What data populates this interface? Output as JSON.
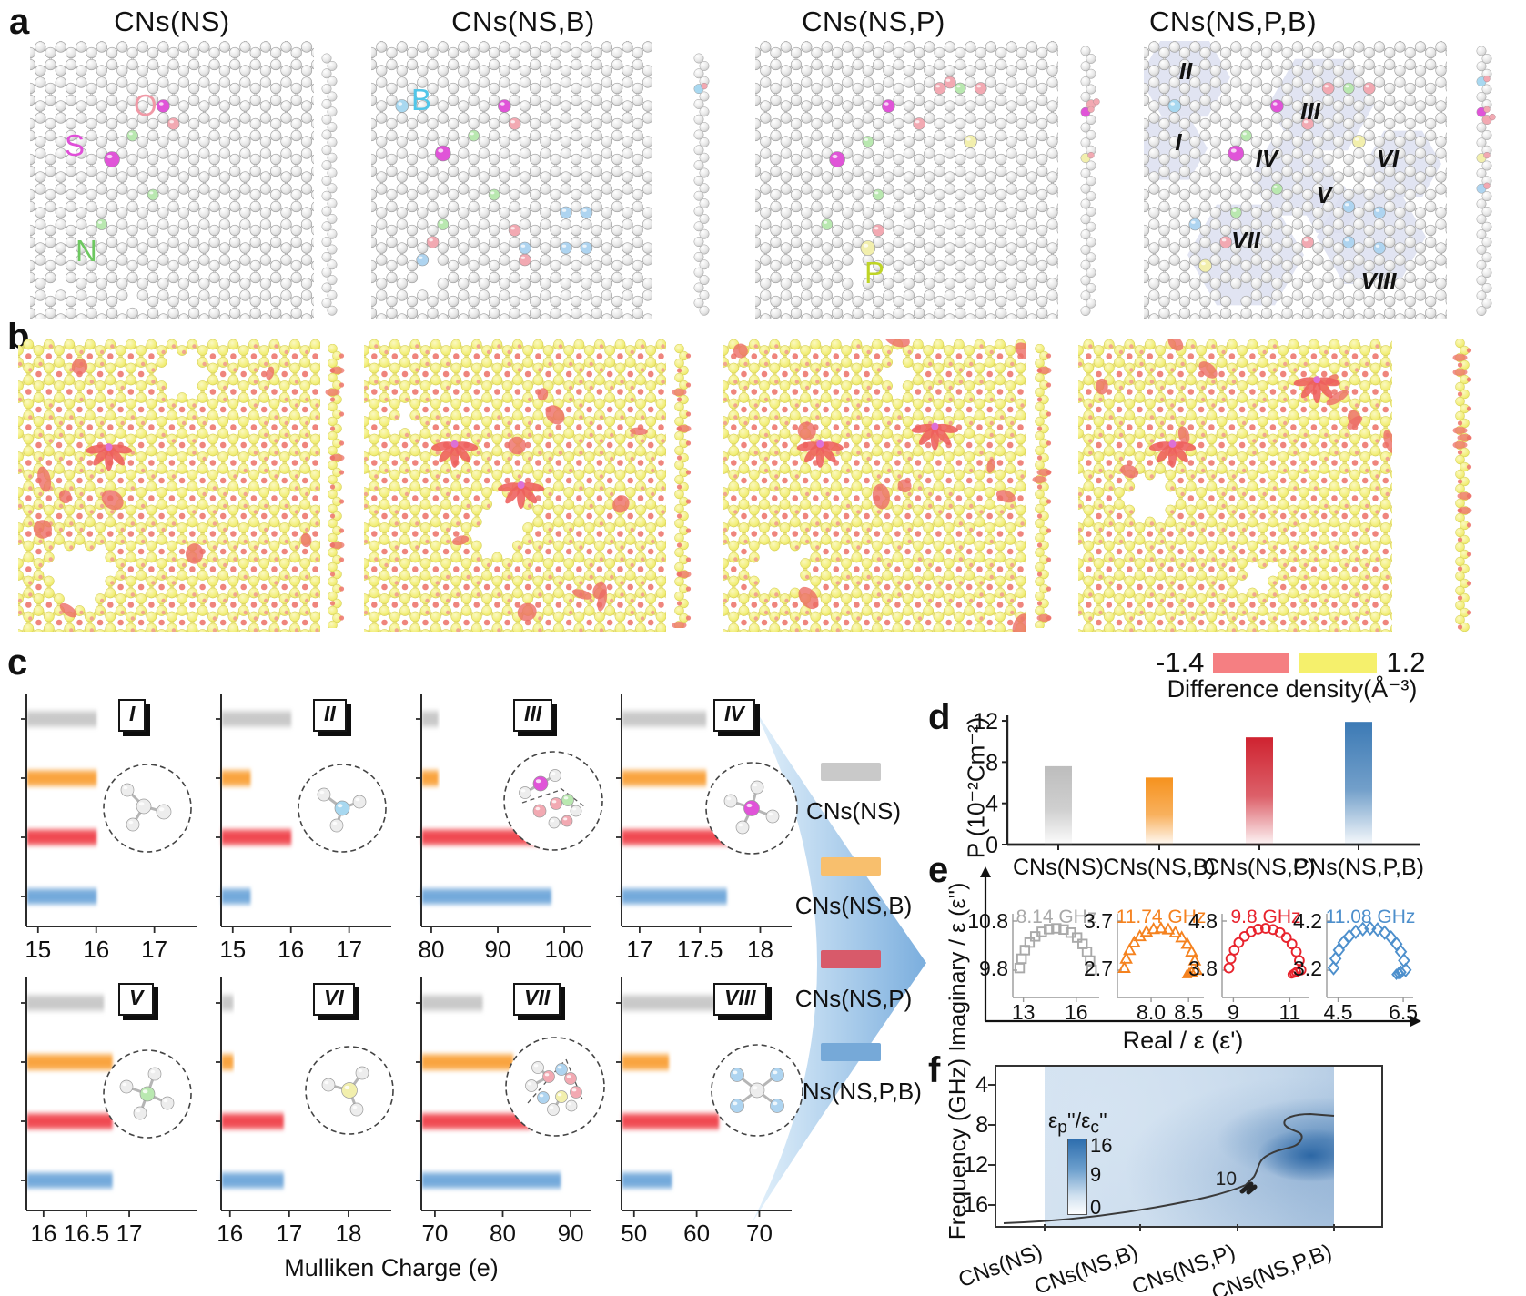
{
  "figure": {
    "panel_labels": [
      "a",
      "b",
      "c",
      "d",
      "e",
      "f"
    ],
    "samples": [
      "CNs(NS)",
      "CNs(NS,B)",
      "CNs(NS,P)",
      "CNs(NS,P,B)"
    ],
    "series_colors": [
      "#c8c8c8",
      "#f9a23b",
      "#f0464e",
      "#70a7da"
    ],
    "legend_colors": [
      "#c9c9c9",
      "#f8bf6d",
      "#d85a6a",
      "#76a9d8"
    ]
  },
  "panel_a": {
    "atom_legend": [
      {
        "symbol": "S",
        "color": "#e04fd8"
      },
      {
        "symbol": "O",
        "color": "#f099a6"
      },
      {
        "symbol": "N",
        "color": "#6dc860"
      },
      {
        "symbol": "B",
        "color": "#52c6e8"
      },
      {
        "symbol": "P",
        "color": "#bfd426"
      }
    ],
    "region_labels": [
      "I",
      "II",
      "III",
      "IV",
      "V",
      "VI",
      "VII",
      "VIII"
    ]
  },
  "panel_b": {
    "colorbar": {
      "min_label": "-1.4",
      "max_label": "1.2",
      "min_color": "#f57f82",
      "max_color": "#f5f06c",
      "title": "Difference density(Å⁻³)"
    }
  },
  "panel_c": {
    "xlabel": "Mulliken Charge (e)",
    "series": [
      "CNs(NS)",
      "CNs(NS,B)",
      "CNs(NS,P)",
      "CNs(NS,P,B)"
    ],
    "chart_data": [
      {
        "id": "I",
        "type": "bar",
        "xticks": [
          "15",
          "16",
          "17"
        ],
        "xmin": 14.8,
        "xmax": 17.6,
        "values": [
          16,
          16,
          16,
          16
        ]
      },
      {
        "id": "II",
        "type": "bar",
        "xticks": [
          "15",
          "16",
          "17"
        ],
        "xmin": 14.8,
        "xmax": 17.6,
        "values": [
          16,
          15.3,
          16,
          15.3
        ]
      },
      {
        "id": "III",
        "type": "bar",
        "xticks": [
          "80",
          "90",
          "100"
        ],
        "xmin": 78.5,
        "xmax": 103,
        "values": [
          81,
          81,
          98,
          98
        ]
      },
      {
        "id": "IV",
        "type": "bar",
        "xticks": [
          "17",
          "17.5",
          "18"
        ],
        "xmin": 16.85,
        "xmax": 18.2,
        "values": [
          17.55,
          17.55,
          17.75,
          17.72
        ]
      },
      {
        "id": "V",
        "type": "bar",
        "xticks": [
          "16",
          "16.5",
          "17"
        ],
        "xmin": 15.8,
        "xmax": 17.7,
        "values": [
          16.7,
          16.8,
          16.8,
          16.8
        ]
      },
      {
        "id": "VI",
        "type": "bar",
        "xticks": [
          "16",
          "17",
          "18"
        ],
        "xmin": 15.85,
        "xmax": 18.6,
        "values": [
          16.05,
          16.05,
          16.9,
          16.9
        ]
      },
      {
        "id": "VII",
        "type": "bar",
        "xticks": [
          "70",
          "80",
          "90"
        ],
        "xmin": 68,
        "xmax": 92,
        "values": [
          77,
          81.5,
          84,
          88.5
        ]
      },
      {
        "id": "VIII",
        "type": "bar",
        "xticks": [
          "50",
          "60",
          "70"
        ],
        "xmin": 48,
        "xmax": 74,
        "values": [
          63.5,
          55.5,
          63.5,
          56
        ]
      }
    ]
  },
  "panel_d": {
    "ylabel": "P (10⁻²Cm⁻²)",
    "colors": [
      "#bdbdbd",
      "#f6921e",
      "#cf2330",
      "#3c7ab5"
    ],
    "chart_data": {
      "type": "bar",
      "categories": [
        "CNs(NS)",
        "CNs(NS,B)",
        "CNs(NS,P)",
        "CNs(NS,P,B)"
      ],
      "values": [
        7.6,
        6.5,
        10.4,
        11.9
      ],
      "yticks": [
        "0",
        "4",
        "8",
        "12"
      ],
      "ylim": [
        0,
        12.6
      ]
    }
  },
  "panel_e": {
    "ylabel": "Imaginary / ε (ε'')",
    "xlabel": "Real / ε (ε')",
    "chart_data": [
      {
        "sample": "CNs(NS)",
        "freq_label": "8.14 GHz",
        "marker": "square",
        "color": "#a9a9a9",
        "ymax_label": "10.8",
        "ymin_label": "9.8",
        "xticks": [
          {
            "t": "13",
            "v": 13
          },
          {
            "t": "16",
            "v": 16
          }
        ],
        "x_range": [
          12.4,
          17.2
        ],
        "cluster": false,
        "shape": "semicircle arc of Cole-Cole plot"
      },
      {
        "sample": "CNs(NS,B)",
        "freq_label": "11.74 GHz",
        "marker": "triangle",
        "color": "#f5821f",
        "ymax_label": "3.7",
        "ymin_label": "2.7",
        "xticks": [
          {
            "t": "8.0",
            "v": 8
          },
          {
            "t": "8.5",
            "v": 8.5
          }
        ],
        "x_range": [
          7.55,
          8.68
        ],
        "cluster": true,
        "shape": "semicircle arc of Cole-Cole plot"
      },
      {
        "sample": "CNs(NS,P)",
        "freq_label": "9.8 GHz",
        "marker": "circle",
        "color": "#e8232d",
        "ymax_label": "4.8",
        "ymin_label": "3.8",
        "xticks": [
          {
            "t": "9",
            "v": 9
          },
          {
            "t": "11",
            "v": 11
          }
        ],
        "x_range": [
          8.6,
          11.6
        ],
        "cluster": true,
        "shape": "semicircle arc of Cole-Cole plot"
      },
      {
        "sample": "CNs(NS,P,B)",
        "freq_label": "11.08 GHz",
        "marker": "diamond",
        "color": "#4d8fcc",
        "ymax_label": "4.2",
        "ymin_label": "3.2",
        "xticks": [
          {
            "t": "4.5",
            "v": 4.5
          },
          {
            "t": "6.5",
            "v": 6.5
          }
        ],
        "x_range": [
          4.15,
          6.75
        ],
        "cluster": true,
        "shape": "semicircle arc of Cole-Cole plot"
      }
    ]
  },
  "panel_f": {
    "ylabel": "Frequency (GHz)",
    "yticks": [
      "4",
      "8",
      "12",
      "16"
    ],
    "contour_label": "10",
    "colorbar": {
      "label_parts": [
        "ε",
        "p",
        "''/ε",
        "c",
        "''"
      ],
      "ticks": [
        "16",
        "9",
        "0"
      ]
    },
    "chart_data": {
      "type": "heatmap",
      "x_categories": [
        "CNs(NS)",
        "CNs(NS,B)",
        "CNs(NS,P)",
        "CNs(NS,P,B)"
      ],
      "y_axis": "Frequency (GHz)",
      "y_range_ghz": [
        2,
        18
      ],
      "value_label": "εp''/εc''",
      "value_range": [
        0,
        16
      ],
      "contour_level": 10,
      "notes": "ratio increases toward CNs(NS,P,B); darkest region near 10-13 GHz at right edge"
    }
  }
}
